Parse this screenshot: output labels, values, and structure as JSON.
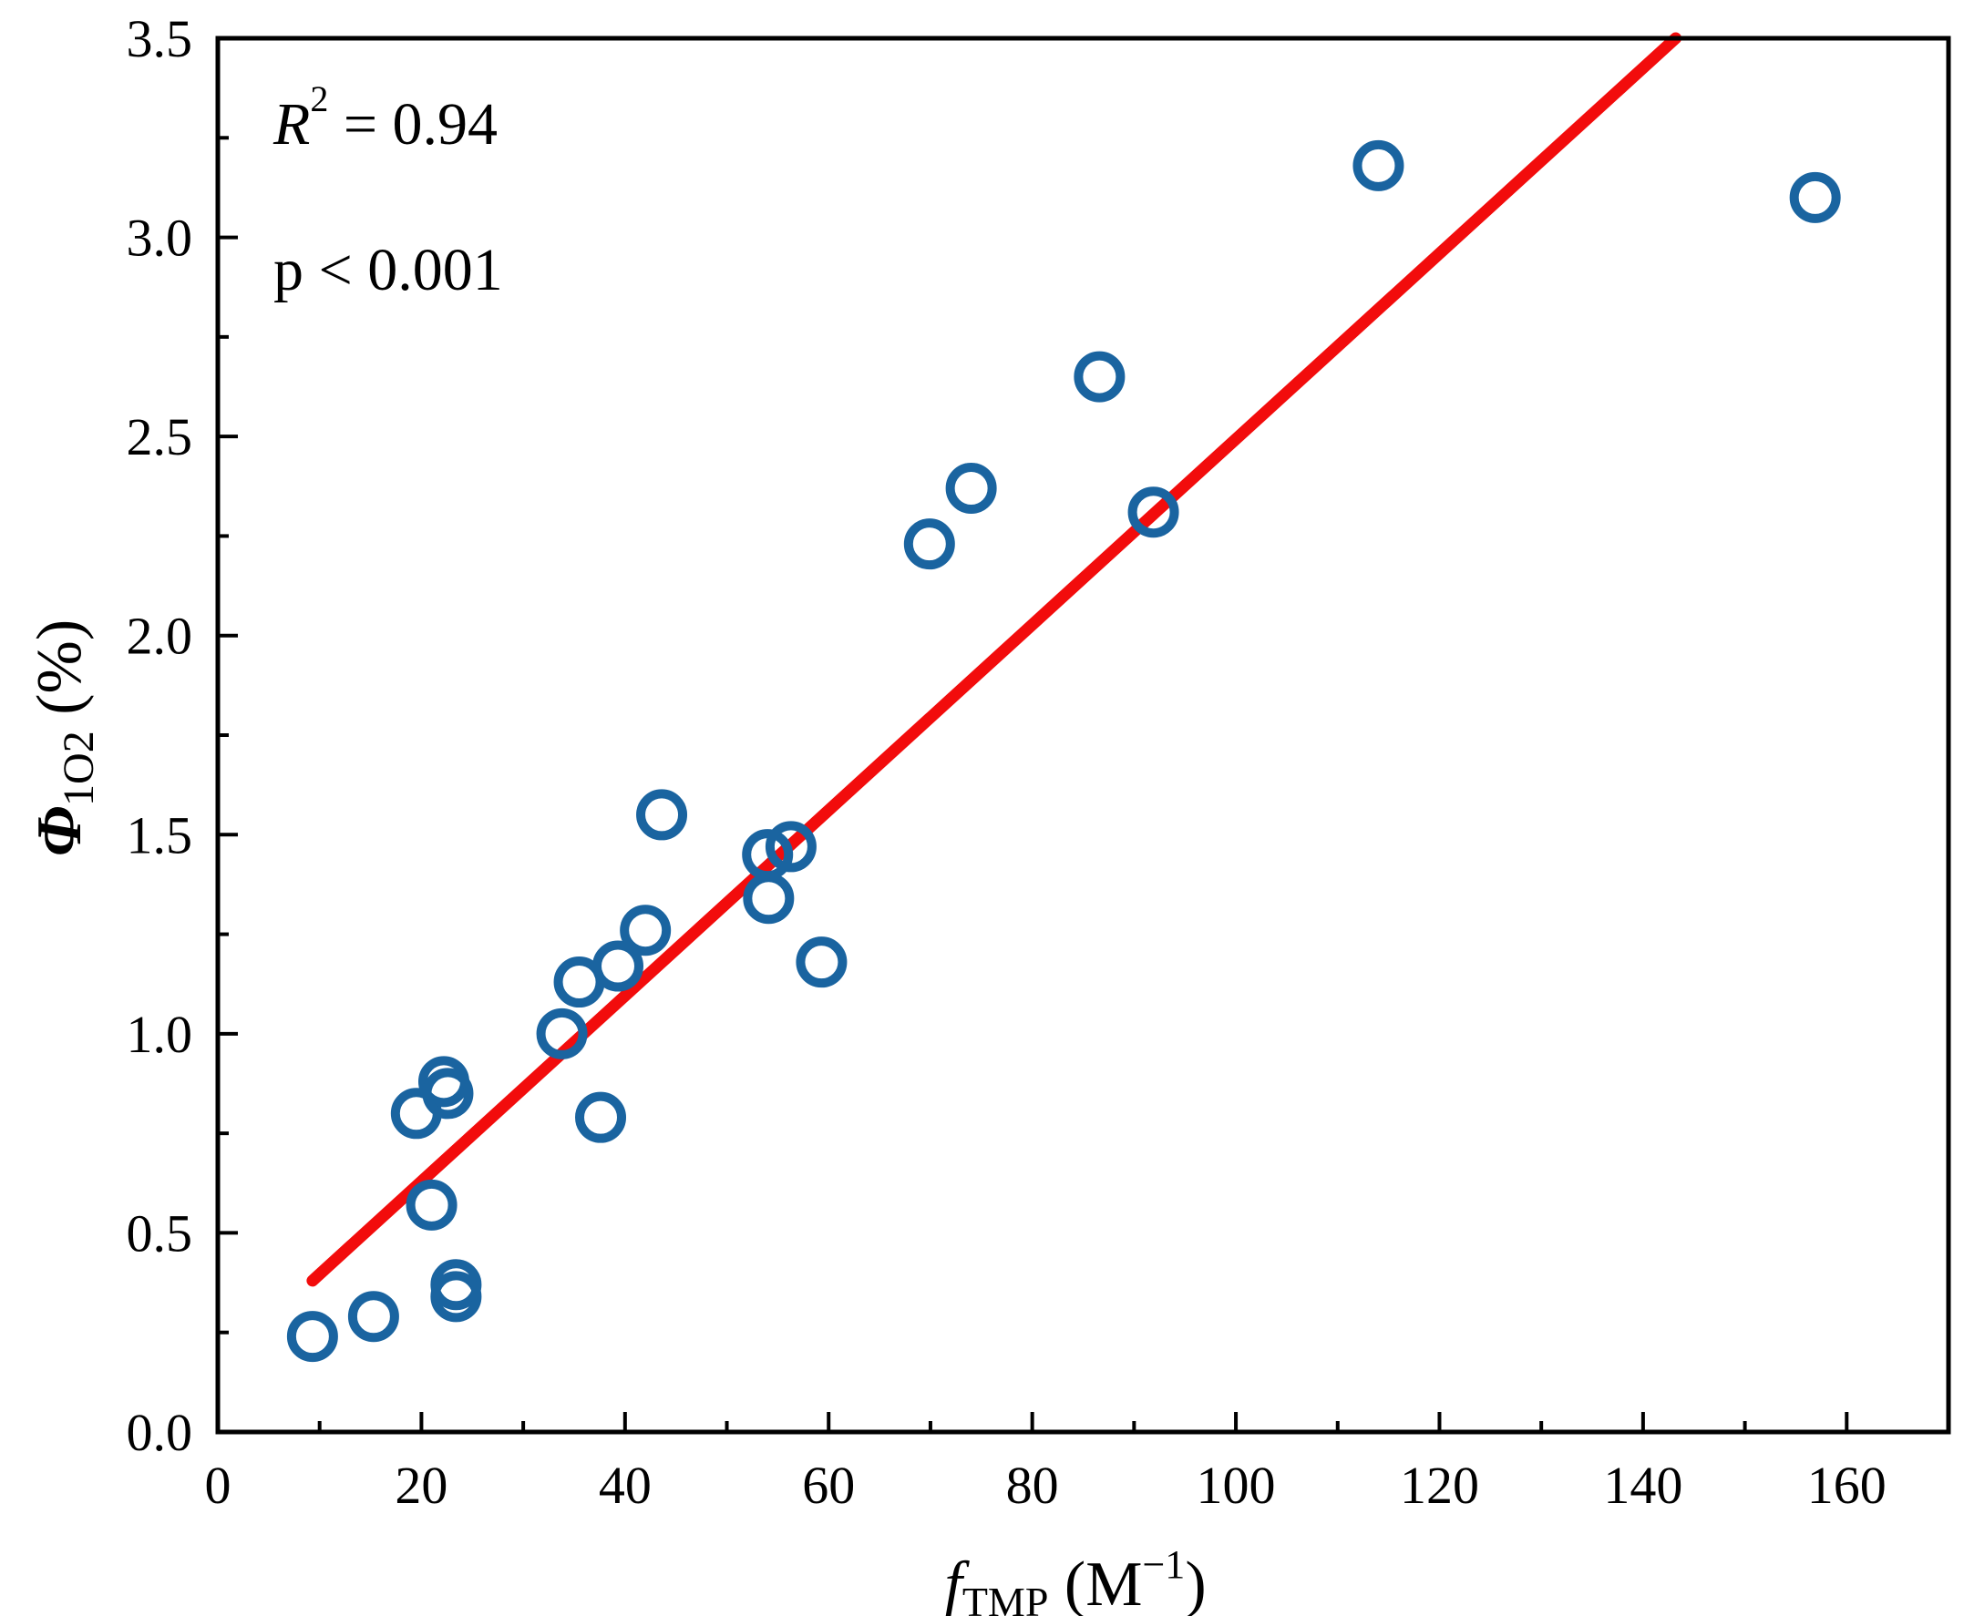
{
  "chart_data": {
    "type": "scatter",
    "title": "",
    "xlabel": {
      "main": "f",
      "sub": "TMP",
      "unit_open": " (M",
      "unit_sup": "−1",
      "unit_close": ")"
    },
    "ylabel": {
      "main": "Φ",
      "sub": "1O2",
      "unit": " (%)"
    },
    "xlim": [
      0,
      170
    ],
    "ylim": [
      0,
      3.5
    ],
    "xticks": [
      0,
      20,
      40,
      60,
      80,
      100,
      120,
      140,
      160
    ],
    "xtick_labels": [
      "0",
      "20",
      "40",
      "60",
      "80",
      "100",
      "120",
      "140",
      "160"
    ],
    "yticks": [
      0,
      0.5,
      1.0,
      1.5,
      2.0,
      2.5,
      3.0,
      3.5
    ],
    "ytick_labels": [
      "0.0",
      "0.5",
      "1.0",
      "1.5",
      "2.0",
      "2.5",
      "3.0",
      "3.5"
    ],
    "x_minor_step": 10,
    "y_minor_step": 0.25,
    "series": [
      {
        "name": "data",
        "marker": "open-circle",
        "color": "#1a64a0",
        "points": [
          [
            9.3,
            0.24
          ],
          [
            15.3,
            0.29
          ],
          [
            19.5,
            0.8
          ],
          [
            21.0,
            0.57
          ],
          [
            22.2,
            0.88
          ],
          [
            22.6,
            0.85
          ],
          [
            23.4,
            0.37
          ],
          [
            23.4,
            0.34
          ],
          [
            33.8,
            1.0
          ],
          [
            35.5,
            1.13
          ],
          [
            37.6,
            0.79
          ],
          [
            39.3,
            1.17
          ],
          [
            42.0,
            1.26
          ],
          [
            43.6,
            1.55
          ],
          [
            54.0,
            1.45
          ],
          [
            54.1,
            1.34
          ],
          [
            56.3,
            1.47
          ],
          [
            59.3,
            1.18
          ],
          [
            69.9,
            2.23
          ],
          [
            74.0,
            2.37
          ],
          [
            86.6,
            2.65
          ],
          [
            91.9,
            2.31
          ],
          [
            114.0,
            3.18
          ],
          [
            156.9,
            3.1
          ]
        ]
      }
    ],
    "fit": {
      "name": "linear fit",
      "color": "#f20c0c",
      "x": [
        9.3,
        143.2
      ],
      "y": [
        0.38,
        3.5
      ]
    },
    "annotations": {
      "r2": {
        "symbol": "R",
        "sup": "2",
        "text": " = 0.94"
      },
      "p": "p < 0.001"
    }
  }
}
